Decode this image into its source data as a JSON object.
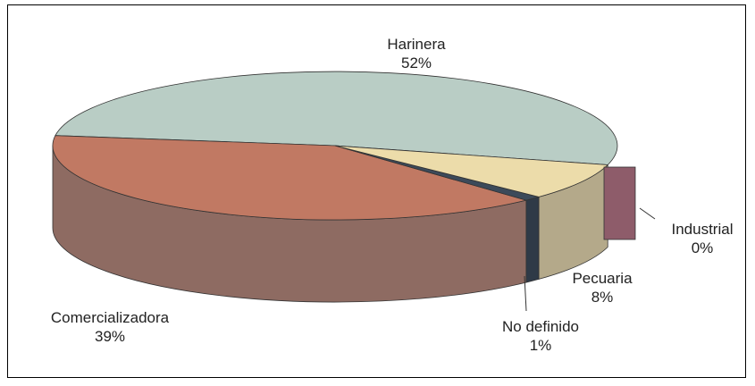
{
  "chart_data": {
    "type": "pie",
    "style": "3d",
    "slices": [
      {
        "name": "Harinera",
        "value": 52,
        "label_pct": "52%",
        "color_top": "#b9cdc5",
        "color_side": "#8f9f98"
      },
      {
        "name": "Comercializadora",
        "value": 39,
        "label_pct": "39%",
        "color_top": "#c17963",
        "color_side": "#8e6b62"
      },
      {
        "name": "No definido",
        "value": 1,
        "label_pct": "1%",
        "color_top": "#3c4a5a",
        "color_side": "#2f3a47"
      },
      {
        "name": "Pecuaria",
        "value": 8,
        "label_pct": "8%",
        "color_top": "#ecdcaa",
        "color_side": "#b4a98a"
      },
      {
        "name": "Industrial",
        "value": 0,
        "label_pct": "0%",
        "color_top": "#8e5c6a",
        "color_side": "#8e5c6a"
      }
    ],
    "legend": "none"
  }
}
